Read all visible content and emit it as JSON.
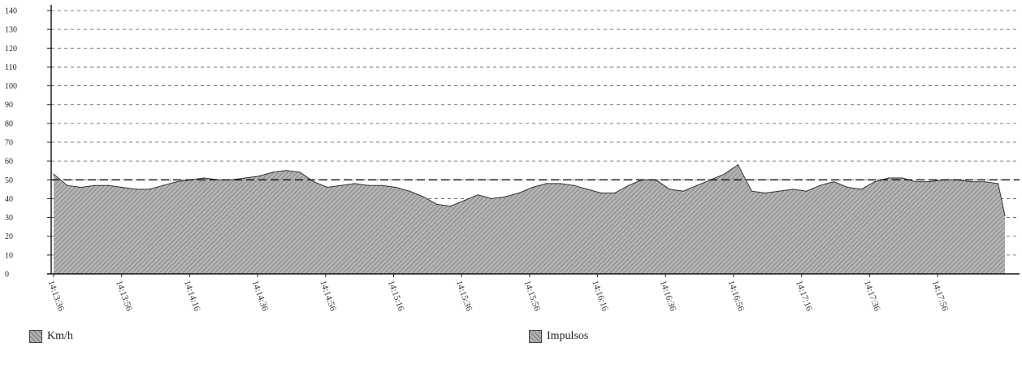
{
  "chart_data": {
    "type": "area",
    "ylim": [
      0,
      140
    ],
    "yticks": [
      0,
      10,
      20,
      30,
      40,
      50,
      60,
      70,
      80,
      90,
      100,
      110,
      120,
      130,
      140
    ],
    "reference_line": 50,
    "grid": true,
    "xtick_labels": [
      "14:13:36",
      "14:13:56",
      "14:14:16",
      "14:14:36",
      "14:14:56",
      "14:15:16",
      "14:15:36",
      "14:15:56",
      "14:16:16",
      "14:16:36",
      "14:16:56",
      "14:17:16",
      "14:17:36",
      "14:17:56"
    ],
    "x": [
      "14:13:36",
      "14:13:40",
      "14:13:44",
      "14:13:48",
      "14:13:52",
      "14:13:56",
      "14:14:00",
      "14:14:04",
      "14:14:08",
      "14:14:12",
      "14:14:16",
      "14:14:20",
      "14:14:24",
      "14:14:28",
      "14:14:32",
      "14:14:36",
      "14:14:40",
      "14:14:44",
      "14:14:48",
      "14:14:52",
      "14:14:56",
      "14:15:00",
      "14:15:04",
      "14:15:08",
      "14:15:12",
      "14:15:16",
      "14:15:20",
      "14:15:24",
      "14:15:28",
      "14:15:32",
      "14:15:36",
      "14:15:40",
      "14:15:44",
      "14:15:48",
      "14:15:52",
      "14:15:56",
      "14:16:00",
      "14:16:04",
      "14:16:08",
      "14:16:12",
      "14:16:16",
      "14:16:20",
      "14:16:24",
      "14:16:28",
      "14:16:32",
      "14:16:36",
      "14:16:40",
      "14:16:44",
      "14:16:48",
      "14:16:52",
      "14:16:56",
      "14:17:00",
      "14:17:04",
      "14:17:08",
      "14:17:12",
      "14:17:16",
      "14:17:20",
      "14:17:24",
      "14:17:28",
      "14:17:32",
      "14:17:36",
      "14:17:40",
      "14:17:44",
      "14:17:48",
      "14:17:52",
      "14:17:56",
      "14:18:00",
      "14:18:04",
      "14:18:08",
      "14:18:12",
      "14:18:14"
    ],
    "series": [
      {
        "name": "Km/h",
        "color": "#9a9a9a",
        "values": [
          53,
          47,
          46,
          47,
          47,
          46,
          45,
          45,
          47,
          49,
          50,
          51,
          50,
          50,
          51,
          52,
          54,
          55,
          54,
          49,
          46,
          47,
          48,
          47,
          47,
          46,
          44,
          41,
          37,
          36,
          39,
          42,
          40,
          41,
          43,
          46,
          48,
          48,
          47,
          45,
          43,
          43,
          47,
          50,
          50,
          45,
          44,
          47,
          50,
          53,
          58,
          44,
          43,
          44,
          45,
          44,
          47,
          49,
          46,
          45,
          49,
          51,
          51,
          49,
          49,
          50,
          50,
          49,
          49,
          48,
          31
        ]
      }
    ],
    "legend": [
      "Km/h",
      "Impulsos"
    ]
  }
}
